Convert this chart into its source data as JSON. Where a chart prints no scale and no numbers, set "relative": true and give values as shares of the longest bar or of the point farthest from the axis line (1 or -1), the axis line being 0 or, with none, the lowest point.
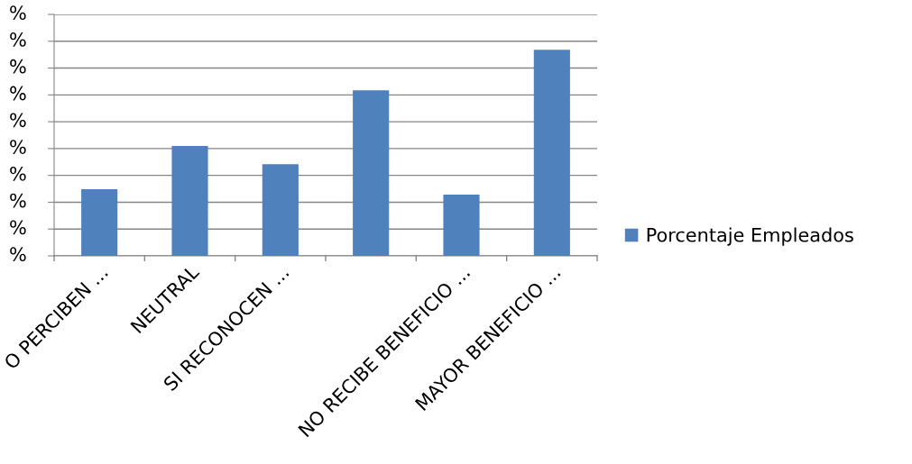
{
  "chart_data": {
    "type": "bar",
    "relative": true,
    "categories": [
      "O PERCIBEN ...",
      "NEUTRAL",
      "SI RECONOCEN ...",
      null,
      "NO RECIBE BENEFICIO ...",
      "MAYOR BENEFICIO ..."
    ],
    "series": [
      {
        "name": "Porcentaje Empleados",
        "color": "#4f81bd",
        "values": [
          0.323,
          0.533,
          0.445,
          0.803,
          0.297,
          1.0
        ]
      }
    ],
    "annotations": [
      "%",
      "%",
      "%",
      "%",
      "%",
      "%",
      "%",
      "%",
      "%",
      "%"
    ],
    "grid": "y",
    "legend": "right"
  }
}
